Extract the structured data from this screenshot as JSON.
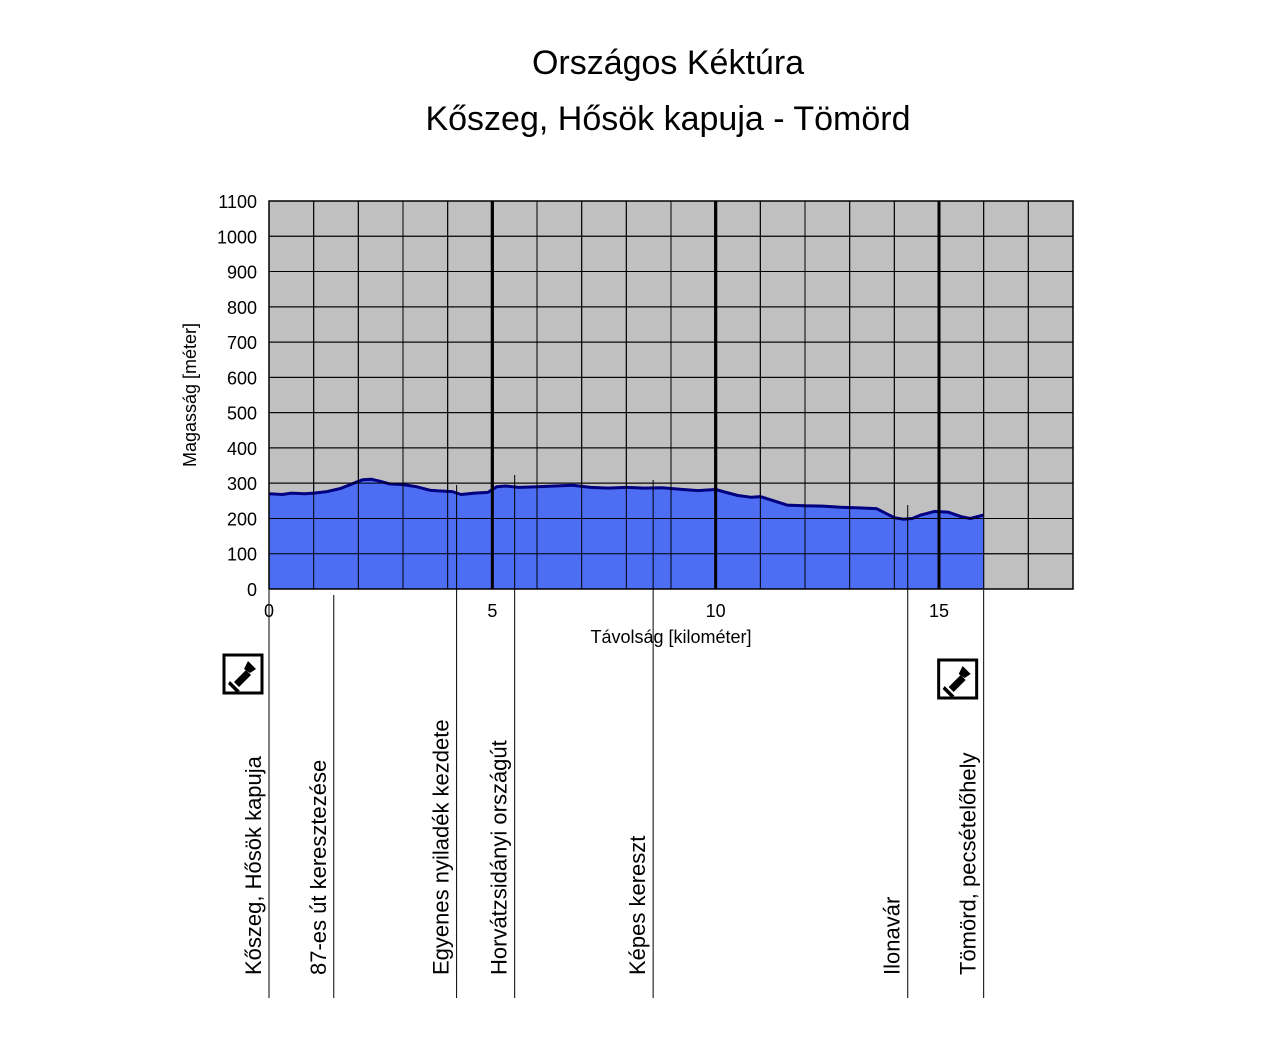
{
  "chart_data": {
    "type": "area",
    "title": "Országos Kéktúra",
    "subtitle": "Kőszeg, Hősök kapuja - Tömörd",
    "xlabel": "Távolság [kilométer]",
    "ylabel": "Magasság [méter]",
    "xlim": [
      0,
      18
    ],
    "ylim": [
      0,
      1100
    ],
    "xticks": [
      0,
      5,
      10,
      15
    ],
    "yticks": [
      0,
      100,
      200,
      300,
      400,
      500,
      600,
      700,
      800,
      900,
      1000,
      1100
    ],
    "grid": true,
    "background": "#c0c0c0",
    "fill_color": "#4d6df3",
    "line_color": "#000080",
    "series": [
      {
        "x": [
          0,
          0.3,
          0.5,
          0.8,
          1.0,
          1.3,
          1.6,
          1.9,
          2.1,
          2.3,
          2.5,
          2.7,
          3.0,
          3.3,
          3.6,
          3.8,
          4.1,
          4.3,
          4.6,
          4.9,
          5.1,
          5.3,
          5.6,
          6.0,
          6.4,
          6.8,
          7.2,
          7.6,
          8.0,
          8.4,
          8.8,
          9.2,
          9.6,
          10.0,
          10.2,
          10.5,
          10.8,
          11.0,
          11.3,
          11.6,
          12.0,
          12.4,
          12.8,
          13.2,
          13.6,
          14.0,
          14.2,
          14.4,
          14.6,
          14.9,
          15.2,
          15.5,
          15.7,
          16.0
        ],
        "y": [
          270,
          268,
          272,
          270,
          272,
          276,
          285,
          300,
          310,
          311,
          305,
          298,
          296,
          290,
          280,
          278,
          276,
          268,
          272,
          274,
          290,
          292,
          288,
          290,
          292,
          294,
          288,
          286,
          288,
          286,
          287,
          283,
          279,
          282,
          275,
          265,
          260,
          262,
          250,
          238,
          236,
          235,
          232,
          230,
          228,
          202,
          198,
          200,
          210,
          220,
          218,
          205,
          200,
          210
        ]
      }
    ],
    "waypoints": [
      {
        "km": 0,
        "label": "Kőszeg, Hősök kapuja",
        "stamp": true
      },
      {
        "km": 1.45,
        "label": "87-es út keresztezése",
        "stamp": false
      },
      {
        "km": 4.2,
        "label": "Egyenes nyiladék kezdete",
        "stamp": false
      },
      {
        "km": 5.5,
        "label": "Horvátzsidányi országút",
        "stamp": false
      },
      {
        "km": 8.6,
        "label": "Képes kereszt",
        "stamp": false
      },
      {
        "km": 14.3,
        "label": "Ilonavár",
        "stamp": false
      },
      {
        "km": 16.0,
        "label": "Tömörd, pecsételőhely",
        "stamp": true
      }
    ]
  }
}
